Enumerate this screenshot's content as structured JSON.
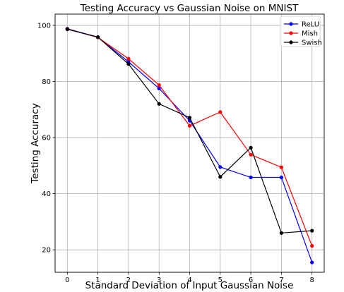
{
  "chart_data": {
    "type": "line",
    "title": "Testing Accuracy vs Gaussian Noise on MNIST",
    "xlabel": "Standard Deviation of Input Gaussian Noise",
    "ylabel": "Testing Accuracy",
    "x": [
      0,
      1,
      2,
      3,
      4,
      5,
      6,
      7,
      8
    ],
    "xlim": [
      -0.4,
      8.4
    ],
    "ylim": [
      12,
      104
    ],
    "xticks": [
      "0",
      "1",
      "2",
      "3",
      "4",
      "5",
      "6",
      "7",
      "8"
    ],
    "yticks": [
      "20",
      "40",
      "60",
      "80",
      "100"
    ],
    "grid": true,
    "legend_position": "top-right",
    "series": [
      {
        "name": "ReLU",
        "color": "#0000ff",
        "values": [
          98.8,
          95.8,
          87.0,
          77.5,
          66.0,
          49.5,
          45.8,
          45.8,
          15.5
        ]
      },
      {
        "name": "Mish",
        "color": "#ff0000",
        "values": [
          98.7,
          95.7,
          88.1,
          78.7,
          64.2,
          69.1,
          53.9,
          49.4,
          21.4
        ]
      },
      {
        "name": "Swish",
        "color": "#000000",
        "values": [
          98.6,
          95.8,
          86.2,
          72.0,
          67.1,
          46.0,
          56.4,
          26.0,
          26.8
        ]
      }
    ]
  }
}
